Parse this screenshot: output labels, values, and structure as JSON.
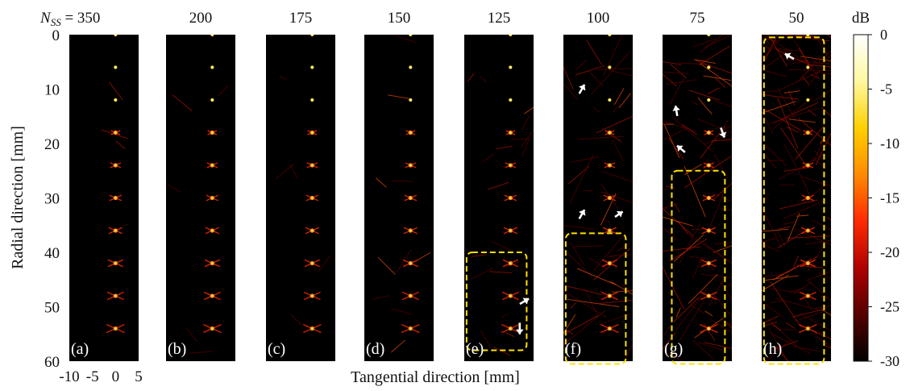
{
  "chart_data": {
    "type": "heatmap",
    "ylabel": "Radial direction [mm]",
    "xlabel": "Tangential direction [mm]",
    "x_ticks": [
      "-10",
      "-5",
      "0",
      "5"
    ],
    "x_range": [
      -10,
      5
    ],
    "y_ticks": [
      "0",
      "10",
      "20",
      "30",
      "40",
      "50",
      "60"
    ],
    "y_range": [
      0,
      60
    ],
    "nss_label": "N",
    "nss_sub": "SS",
    "nss_eq": " = 350",
    "colorbar": {
      "unit": "dB",
      "ticks": [
        "0",
        "-5",
        "-10",
        "-15",
        "-20",
        "-25",
        "-30"
      ],
      "range": [
        -30,
        0
      ],
      "colors": [
        "#ffffff",
        "#fff8a0",
        "#ffd000",
        "#ff8a00",
        "#ff2a00",
        "#b00000",
        "#550000",
        "#000000"
      ]
    },
    "point_targets_mm": [
      0,
      6,
      12,
      18,
      24,
      30,
      36,
      42,
      48,
      54
    ],
    "panels": [
      {
        "label": "(a)",
        "nss": "350",
        "noise": 0.02,
        "arrows": [],
        "box": null
      },
      {
        "label": "(b)",
        "nss": "200",
        "noise": 0.03,
        "arrows": [],
        "box": null
      },
      {
        "label": "(c)",
        "nss": "175",
        "noise": 0.04,
        "arrows": [],
        "box": null
      },
      {
        "label": "(d)",
        "nss": "150",
        "noise": 0.06,
        "arrows": [],
        "box": null
      },
      {
        "label": "(e)",
        "nss": "125",
        "noise": 0.12,
        "arrows": [
          [
            3,
            49,
            50,
            -30
          ],
          [
            2,
            54,
            55,
            90
          ]
        ],
        "box": [
          -9.5,
          3.5,
          40,
          58
        ]
      },
      {
        "label": "(f)",
        "nss": "100",
        "noise": 0.35,
        "arrows": [
          [
            -6,
            10,
            50,
            -60
          ],
          [
            -6,
            33,
            50,
            -60
          ],
          [
            2,
            33,
            45,
            -35
          ]
        ],
        "box": [
          -9.5,
          3.5,
          36.5,
          60.5
        ]
      },
      {
        "label": "(g)",
        "nss": "75",
        "noise": 0.55,
        "arrows": [
          [
            -7,
            14,
            50,
            -100
          ],
          [
            -6,
            21,
            50,
            220
          ],
          [
            3,
            18,
            50,
            70
          ]
        ],
        "box": [
          -8,
          3.5,
          25,
          60.5
        ]
      },
      {
        "label": "(h)",
        "nss": "50",
        "noise": 0.8,
        "arrows": [
          [
            -4,
            4,
            50,
            210
          ]
        ],
        "box": [
          -9.5,
          3.5,
          0.5,
          60.5
        ]
      }
    ]
  }
}
